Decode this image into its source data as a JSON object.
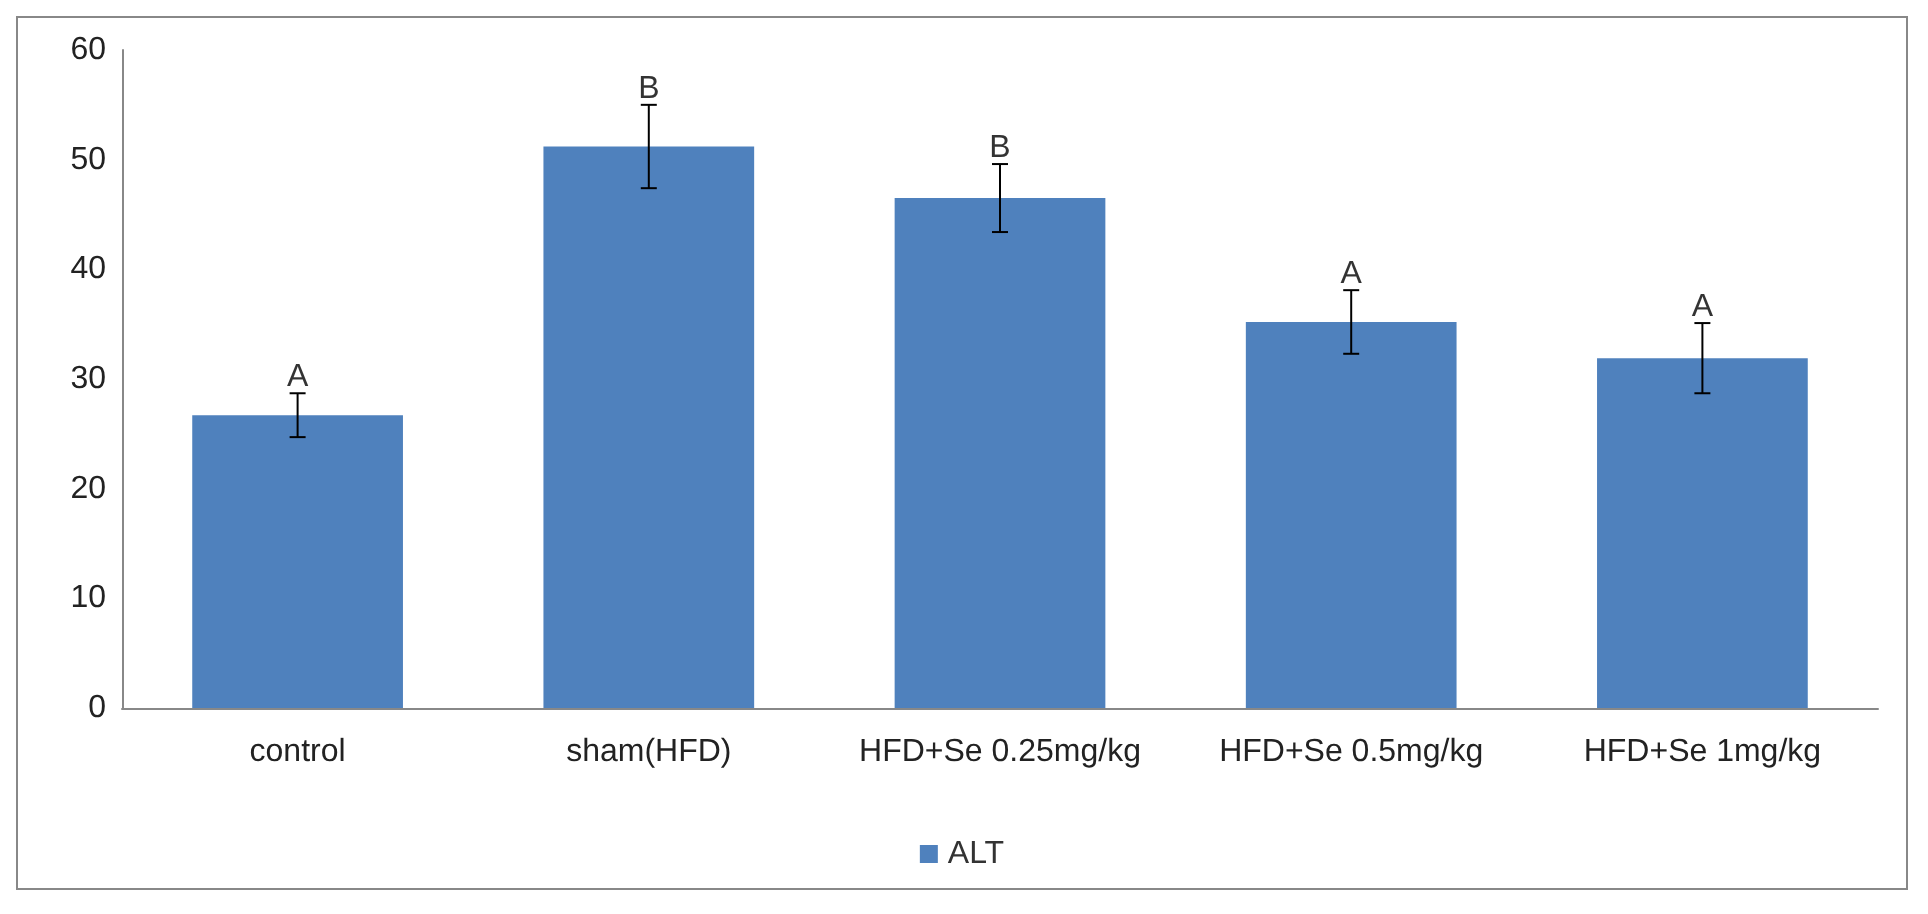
{
  "chart_data": {
    "type": "bar",
    "categories": [
      "control",
      "sham(HFD)",
      "HFD+Se 0.25mg/kg",
      "HFD+Se 0.5mg/kg",
      "HFD+Se 1mg/kg"
    ],
    "series": [
      {
        "name": "ALT",
        "color": "#4f81bd",
        "values": [
          26.7,
          51.2,
          46.5,
          35.2,
          31.9
        ],
        "errors": [
          2.0,
          3.8,
          3.1,
          2.9,
          3.2
        ]
      }
    ],
    "ylim": [
      0,
      60
    ],
    "yticks": [
      0,
      10,
      20,
      30,
      40,
      50,
      60
    ],
    "grid": false,
    "legend": "bottom",
    "annotations": [
      {
        "text": "A",
        "x": "control",
        "y": 28.7
      },
      {
        "text": "B",
        "x": "sham(HFD)",
        "y": 55.0
      },
      {
        "text": "B",
        "x": "HFD+Se 0.25mg/kg",
        "y": 49.6
      },
      {
        "text": "A",
        "x": "HFD+Se 0.5mg/kg",
        "y": 38.1
      },
      {
        "text": "A",
        "x": "HFD+Se 1mg/kg",
        "y": 35.1
      }
    ]
  }
}
